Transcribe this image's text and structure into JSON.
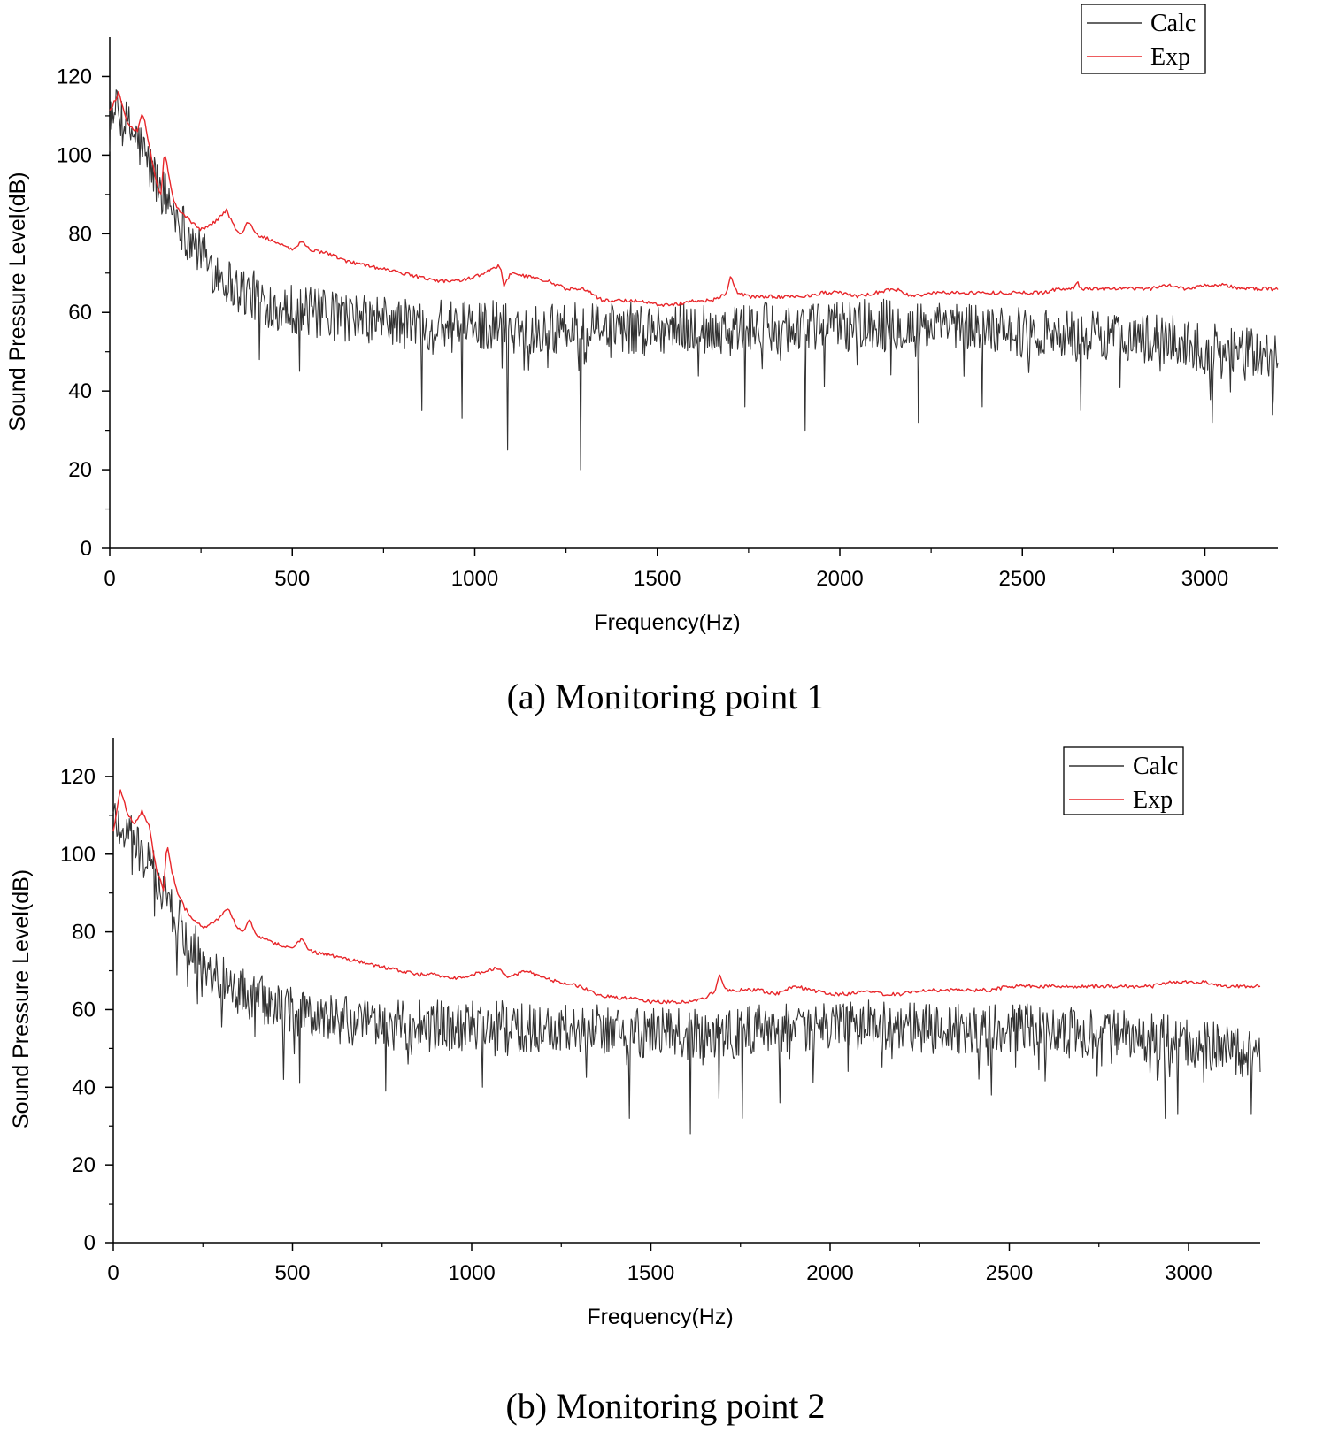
{
  "chart_data": [
    {
      "type": "line",
      "caption": "(a) Monitoring point 1",
      "xlabel": "Frequency(Hz)",
      "ylabel": "Sound Pressure Level(dB)",
      "xlim": [
        0,
        3200
      ],
      "ylim": [
        0,
        130
      ],
      "xticks": [
        0,
        500,
        1000,
        1500,
        2000,
        2500,
        3000
      ],
      "yticks": [
        0,
        20,
        40,
        60,
        80,
        100,
        120
      ],
      "legend_position": "top-right",
      "series": [
        {
          "name": "Calc",
          "color": "#333333",
          "x": [
            0,
            25,
            50,
            75,
            100,
            125,
            150,
            175,
            200,
            225,
            250,
            275,
            300,
            325,
            350,
            375,
            400,
            450,
            500,
            550,
            600,
            650,
            700,
            750,
            800,
            850,
            900,
            950,
            1000,
            1050,
            1100,
            1150,
            1200,
            1250,
            1300,
            1350,
            1400,
            1450,
            1500,
            1550,
            1600,
            1650,
            1700,
            1750,
            1800,
            1850,
            1900,
            1950,
            2000,
            2050,
            2100,
            2150,
            2200,
            2250,
            2300,
            2350,
            2400,
            2450,
            2500,
            2550,
            2600,
            2650,
            2700,
            2750,
            2800,
            2850,
            2900,
            2950,
            3000,
            3050,
            3100,
            3150,
            3200
          ],
          "y": [
            112,
            110,
            107,
            104,
            99,
            94,
            90,
            86,
            82,
            78,
            75,
            72,
            70,
            68,
            66,
            65,
            64,
            62,
            61,
            60,
            59,
            59,
            58,
            58,
            57,
            57,
            57,
            56,
            57,
            57,
            56,
            56,
            56,
            56,
            56,
            56,
            56,
            56,
            56,
            56,
            56,
            56,
            56,
            56,
            56,
            56,
            56,
            56,
            57,
            57,
            57,
            57,
            56,
            56,
            56,
            56,
            56,
            55,
            55,
            55,
            55,
            54,
            54,
            54,
            54,
            53,
            53,
            52,
            51,
            51,
            50,
            49,
            48
          ],
          "dips": [
            [
              1090,
              25
            ],
            [
              1290,
              20
            ],
            [
              855,
              35
            ],
            [
              965,
              33
            ],
            [
              1905,
              30
            ],
            [
              2215,
              32
            ],
            [
              3020,
              32
            ],
            [
              3185,
              34
            ],
            [
              2660,
              35
            ],
            [
              1740,
              36
            ],
            [
              2390,
              36
            ],
            [
              520,
              45
            ],
            [
              410,
              48
            ]
          ]
        },
        {
          "name": "Exp",
          "color": "#e8262a",
          "x": [
            0,
            25,
            50,
            75,
            90,
            110,
            125,
            140,
            150,
            160,
            175,
            200,
            225,
            250,
            275,
            300,
            320,
            340,
            360,
            380,
            400,
            450,
            500,
            525,
            550,
            600,
            650,
            700,
            750,
            800,
            850,
            900,
            950,
            1000,
            1050,
            1070,
            1080,
            1100,
            1150,
            1200,
            1250,
            1300,
            1350,
            1400,
            1450,
            1500,
            1550,
            1600,
            1650,
            1690,
            1700,
            1720,
            1750,
            1800,
            1850,
            1900,
            1950,
            2000,
            2050,
            2100,
            2150,
            2200,
            2250,
            2300,
            2350,
            2400,
            2450,
            2500,
            2550,
            2600,
            2640,
            2650,
            2660,
            2700,
            2750,
            2800,
            2850,
            2900,
            2950,
            3000,
            3050,
            3100,
            3150,
            3200
          ],
          "y": [
            111,
            116,
            108,
            106,
            111,
            102,
            94,
            90,
            101,
            96,
            88,
            85,
            83,
            81,
            82,
            84,
            86,
            82,
            80,
            83,
            80,
            78,
            76,
            78,
            76,
            75,
            73,
            72,
            71,
            70,
            69,
            68,
            68,
            69,
            71,
            72,
            67,
            70,
            69,
            68,
            66,
            66,
            63,
            63,
            63,
            62,
            62,
            63,
            63,
            65,
            69,
            65,
            64,
            64,
            64,
            64,
            65,
            65,
            64,
            65,
            66,
            64,
            65,
            65,
            65,
            65,
            65,
            65,
            65,
            66,
            66,
            68,
            66,
            66,
            66,
            66,
            66,
            67,
            66,
            67,
            67,
            66,
            66,
            66
          ]
        }
      ]
    },
    {
      "type": "line",
      "caption": "(b) Monitoring point 2",
      "xlabel": "Frequency(Hz)",
      "ylabel": "Sound Pressure Level(dB)",
      "xlim": [
        0,
        3200
      ],
      "ylim": [
        0,
        130
      ],
      "xticks": [
        0,
        500,
        1000,
        1500,
        2000,
        2500,
        3000
      ],
      "yticks": [
        0,
        20,
        40,
        60,
        80,
        100,
        120
      ],
      "legend_position": "top-right",
      "series": [
        {
          "name": "Calc",
          "color": "#333333",
          "x": [
            0,
            25,
            50,
            75,
            100,
            125,
            150,
            175,
            200,
            225,
            250,
            275,
            300,
            325,
            350,
            375,
            400,
            450,
            500,
            550,
            600,
            650,
            700,
            750,
            800,
            850,
            900,
            950,
            1000,
            1050,
            1100,
            1150,
            1200,
            1250,
            1300,
            1350,
            1400,
            1450,
            1500,
            1550,
            1600,
            1650,
            1700,
            1750,
            1800,
            1850,
            1900,
            1950,
            2000,
            2050,
            2100,
            2150,
            2200,
            2250,
            2300,
            2350,
            2400,
            2450,
            2500,
            2550,
            2600,
            2650,
            2700,
            2750,
            2800,
            2850,
            2900,
            2950,
            3000,
            3050,
            3100,
            3150,
            3200
          ],
          "y": [
            110,
            107,
            104,
            101,
            97,
            93,
            88,
            84,
            80,
            76,
            73,
            70,
            68,
            66,
            65,
            64,
            63,
            61,
            60,
            58,
            58,
            57,
            56,
            56,
            56,
            56,
            56,
            55,
            56,
            56,
            56,
            55,
            55,
            55,
            55,
            55,
            55,
            54,
            54,
            54,
            54,
            54,
            54,
            54,
            55,
            55,
            55,
            55,
            56,
            56,
            56,
            56,
            56,
            55,
            55,
            55,
            55,
            55,
            55,
            55,
            54,
            54,
            54,
            54,
            54,
            53,
            53,
            52,
            51,
            51,
            50,
            49,
            48
          ],
          "dips": [
            [
              1610,
              28
            ],
            [
              1440,
              32
            ],
            [
              2935,
              32
            ],
            [
              2970,
              33
            ],
            [
              3175,
              33
            ],
            [
              760,
              39
            ],
            [
              475,
              42
            ],
            [
              520,
              41
            ],
            [
              1755,
              32
            ],
            [
              1030,
              40
            ],
            [
              1860,
              36
            ],
            [
              1690,
              37
            ],
            [
              2450,
              38
            ]
          ]
        },
        {
          "name": "Exp",
          "color": "#e8262a",
          "x": [
            0,
            20,
            40,
            60,
            80,
            100,
            120,
            140,
            150,
            165,
            180,
            200,
            225,
            250,
            275,
            300,
            320,
            340,
            360,
            380,
            400,
            450,
            500,
            525,
            550,
            600,
            650,
            700,
            750,
            800,
            850,
            900,
            950,
            1000,
            1050,
            1070,
            1100,
            1150,
            1200,
            1250,
            1300,
            1350,
            1400,
            1450,
            1500,
            1550,
            1600,
            1650,
            1680,
            1690,
            1710,
            1750,
            1800,
            1850,
            1900,
            1950,
            2000,
            2050,
            2100,
            2150,
            2200,
            2250,
            2300,
            2350,
            2400,
            2450,
            2500,
            2550,
            2600,
            2650,
            2700,
            2750,
            2800,
            2850,
            2900,
            2950,
            3000,
            3050,
            3100,
            3150,
            3200
          ],
          "y": [
            106,
            117,
            110,
            108,
            111,
            107,
            96,
            91,
            103,
            95,
            90,
            86,
            83,
            81,
            82,
            84,
            86,
            82,
            80,
            83,
            79,
            77,
            76,
            78,
            75,
            74,
            73,
            72,
            71,
            70,
            69,
            69,
            68,
            69,
            70,
            71,
            68,
            70,
            68,
            67,
            66,
            64,
            63,
            63,
            62,
            62,
            62,
            63,
            65,
            69,
            65,
            65,
            65,
            64,
            66,
            65,
            64,
            64,
            65,
            64,
            64,
            65,
            65,
            65,
            65,
            65,
            66,
            66,
            66,
            66,
            66,
            66,
            66,
            66,
            66,
            67,
            67,
            67,
            66,
            66,
            66
          ]
        }
      ]
    }
  ]
}
